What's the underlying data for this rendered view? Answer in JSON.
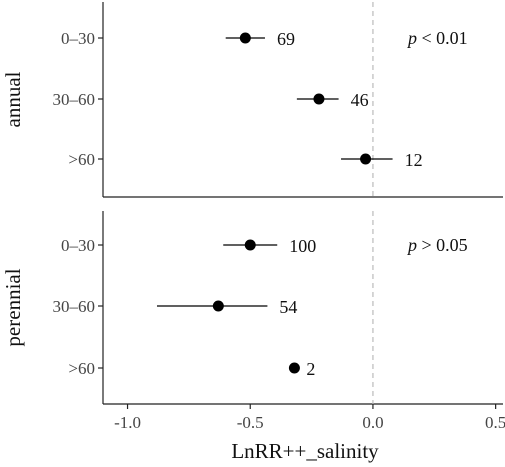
{
  "chart_data": {
    "type": "scatter",
    "subtype": "forest-plot-with-ci",
    "xlabel": "LnRR++_salinity",
    "xlim": [
      -1.1,
      0.53
    ],
    "xticks": [
      "-1.0",
      "-0.5",
      "0.0",
      "0.5"
    ],
    "xtick_values": [
      -1.0,
      -0.5,
      0.0,
      0.5
    ],
    "reference_line": 0,
    "reference_line_style": "dashed",
    "facets": [
      {
        "name": "annual",
        "p_label": "p",
        "p_text": " < 0.01",
        "categories": [
          "0–30",
          "30–60",
          ">60"
        ],
        "points": [
          {
            "category": "0–30",
            "estimate": -0.52,
            "ci_low": -0.6,
            "ci_high": -0.44,
            "n": "69"
          },
          {
            "category": "30–60",
            "estimate": -0.22,
            "ci_low": -0.31,
            "ci_high": -0.14,
            "n": "46"
          },
          {
            "category": ">60",
            "estimate": -0.03,
            "ci_low": -0.13,
            "ci_high": 0.08,
            "n": "12"
          }
        ]
      },
      {
        "name": "perennial",
        "p_label": "p",
        "p_text": " > 0.05",
        "categories": [
          "0–30",
          "30–60",
          ">60"
        ],
        "points": [
          {
            "category": "0–30",
            "estimate": -0.5,
            "ci_low": -0.61,
            "ci_high": -0.39,
            "n": "100"
          },
          {
            "category": "30–60",
            "estimate": -0.63,
            "ci_low": -0.88,
            "ci_high": -0.43,
            "n": "54"
          },
          {
            "category": ">60",
            "estimate": -0.32,
            "ci_low": -0.32,
            "ci_high": -0.32,
            "n": "2"
          }
        ]
      }
    ],
    "grid": false,
    "colors": {
      "point": "#000000",
      "axis": "#222222",
      "reference": "#bbbbbb"
    }
  }
}
